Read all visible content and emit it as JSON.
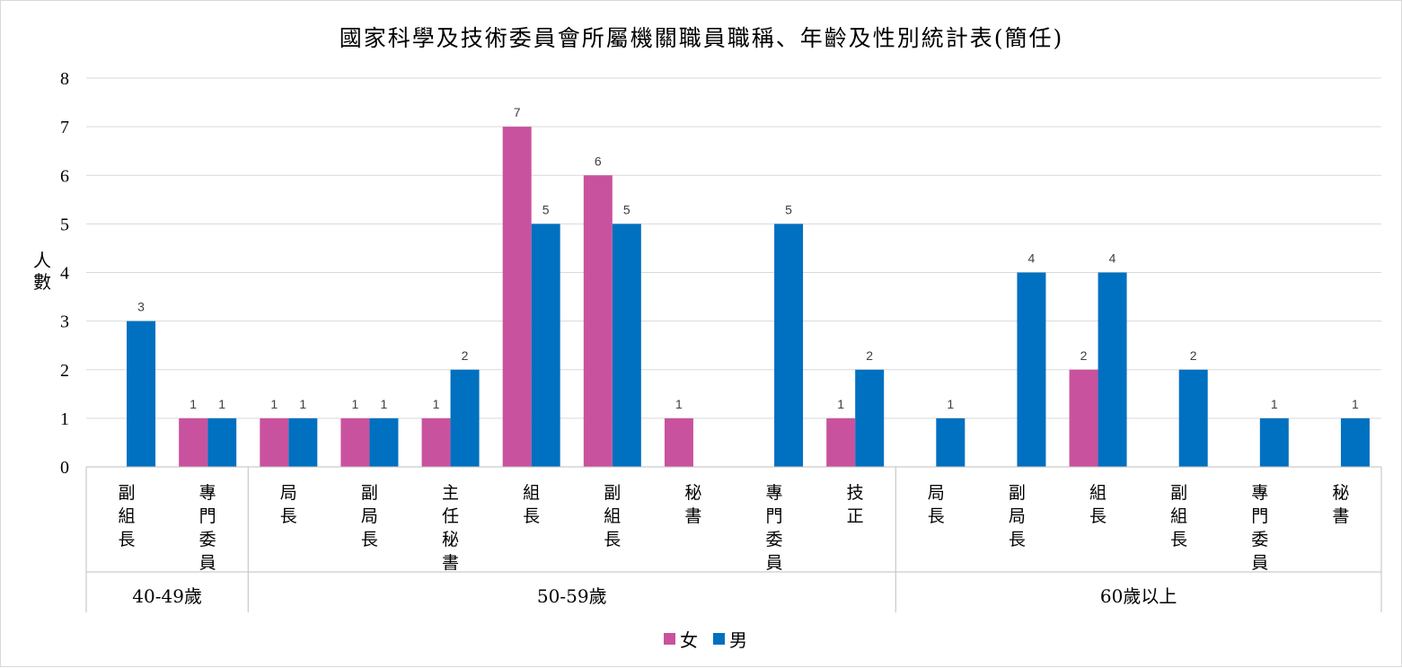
{
  "chart_data": {
    "type": "bar",
    "title": "國家科學及技術委員會所屬機關職員職稱、年齡及性別統計表(簡任)",
    "ylabel": "人數",
    "xlabel": "",
    "ylim": [
      0,
      8
    ],
    "yticks": [
      0,
      1,
      2,
      3,
      4,
      5,
      6,
      7,
      8
    ],
    "grid": true,
    "legend_position": "bottom",
    "groups": [
      {
        "name": "40-49歲",
        "categories": [
          "副組長",
          "專門委員"
        ]
      },
      {
        "name": "50-59歲",
        "categories": [
          "局長",
          "副局長",
          "主任秘書",
          "組長",
          "副組長",
          "秘書",
          "專門委員",
          "技正"
        ]
      },
      {
        "name": "60歲以上",
        "categories": [
          "局長",
          "副局長",
          "組長",
          "副組長",
          "專門委員",
          "秘書"
        ]
      }
    ],
    "categories": [
      "副組長",
      "專門委員",
      "局長",
      "副局長",
      "主任秘書",
      "組長",
      "副組長",
      "秘書",
      "專門委員",
      "技正",
      "局長",
      "副局長",
      "組長",
      "副組長",
      "專門委員",
      "秘書"
    ],
    "series": [
      {
        "name": "女",
        "color": "#C9529E",
        "values": [
          null,
          1,
          1,
          1,
          1,
          7,
          6,
          1,
          null,
          1,
          null,
          null,
          2,
          null,
          null,
          null
        ]
      },
      {
        "name": "男",
        "color": "#0070C0",
        "values": [
          3,
          1,
          1,
          1,
          2,
          5,
          5,
          null,
          5,
          2,
          1,
          4,
          4,
          2,
          1,
          1
        ]
      }
    ]
  }
}
